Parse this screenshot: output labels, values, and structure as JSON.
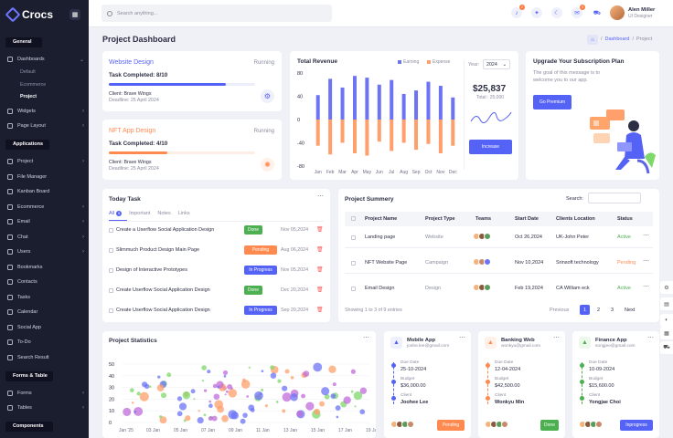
{
  "brand": {
    "name": "Crocs",
    "accent": "#5562f6"
  },
  "sidebar": {
    "general_label": "General",
    "applications_label": "Applications",
    "forms_label": "Forms & Table",
    "components_label": "Components",
    "dashboards": "Dashboards",
    "default": "Default",
    "ecommerce": "Ecommerce",
    "project": "Project",
    "widgets": "Widgets",
    "page_layout": "Page Layout",
    "apps": [
      "Project",
      "File Manager",
      "Kanban Board",
      "Ecommerce",
      "Email",
      "Chat",
      "Users",
      "Bookmarks",
      "Contacts",
      "Tasks",
      "Calendar",
      "Social App",
      "To-Do",
      "Search Result"
    ],
    "forms": "Forms",
    "tables": "Tables"
  },
  "topbar": {
    "search_placeholder": "Search anything...",
    "user_name": "Alen Miller",
    "user_role": "UI Designer",
    "badge_bell": "2",
    "badge_mail": "3"
  },
  "page": {
    "title": "Project Dashboard",
    "crumb_dashboard": "Dashboard",
    "crumb_sep": "/",
    "crumb_project": "Project"
  },
  "projects": [
    {
      "name": "Website Design",
      "status": "Running",
      "completed": "Task Completed: 8/10",
      "progress": 0.8,
      "client": "Client: Brave Wings",
      "deadline": "Deadline: 25 April 2024",
      "color": "#5562f6"
    },
    {
      "name": "NFT App Design",
      "status": "Running",
      "completed": "Task Completed: 4/10",
      "progress": 0.4,
      "client": "Client: Brave Wings",
      "deadline": "Deadline: 25 April 2024",
      "color": "#ff8a50"
    }
  ],
  "revenue": {
    "title": "Total Revenue",
    "legend_earning": "Earning",
    "legend_expense": "Expense",
    "year_label": "Year:",
    "year": "2024",
    "total": "$25,837",
    "last": "Total : 25,000",
    "button": "Increase"
  },
  "chart_data": [
    {
      "type": "bar",
      "title": "Total Revenue",
      "categories": [
        "Jan",
        "Feb",
        "Mar",
        "Apr",
        "May",
        "Jun",
        "Jul",
        "Aug",
        "Sep",
        "Oct",
        "Nov",
        "Dec"
      ],
      "series": [
        {
          "name": "Earning",
          "values": [
            42,
            70,
            55,
            75,
            72,
            60,
            68,
            44,
            50,
            65,
            58,
            38
          ]
        },
        {
          "name": "Expense",
          "values": [
            -45,
            -60,
            -40,
            -58,
            -62,
            -38,
            -54,
            -40,
            -52,
            -42,
            -58,
            -45
          ]
        }
      ],
      "yticks": [
        "80",
        "40",
        "0",
        "-40",
        "-80"
      ],
      "ylim": [
        -80,
        80
      ],
      "colors": {
        "Earning": "#6c74f5",
        "Expense": "#ff9f6b"
      }
    },
    {
      "type": "scatter",
      "title": "Project Statistics",
      "yticks": [
        "50",
        "40",
        "30",
        "20",
        "10",
        "0"
      ],
      "ylim": [
        0,
        50
      ],
      "xticks": [
        "Jan '25",
        "03 Jan",
        "05 Jan",
        "07 Jan",
        "09 Jan",
        "11 Jan",
        "13 Jan",
        "15 Jan",
        "17 Jan",
        "19 Jan"
      ],
      "colors": [
        "#6c74f5",
        "#7ed86a",
        "#ff9f6b",
        "#c06bd9"
      ]
    }
  ],
  "upgrade": {
    "title": "Upgrade Your Subscription Plan",
    "text": "The goal of this message is to welcome you to our app.",
    "button": "Go Premium"
  },
  "tasks": {
    "title": "Today Task",
    "tabs": {
      "all": "All",
      "all_count": "5",
      "important": "Important",
      "notes": "Notes",
      "links": "Links"
    },
    "rows": [
      {
        "name": "Create a Userflow Social Application Design",
        "status": "Done",
        "color": "#4caf50",
        "date": "Nov 05,2024"
      },
      {
        "name": "Slimmuch Product Design Main Page",
        "status": "Pending",
        "color": "#ff8a50",
        "date": "Aug 06,2024"
      },
      {
        "name": "Design of Interactive Prototypes",
        "status": "In Progress",
        "color": "#5562f6",
        "date": "Nov 05,2024"
      },
      {
        "name": "Create Userflow Social Application Design",
        "status": "Done",
        "color": "#4caf50",
        "date": "Dec 20,2024"
      },
      {
        "name": "Create Userflow Social Application Design",
        "status": "In Progress",
        "color": "#5562f6",
        "date": "Sep 20,2024"
      }
    ]
  },
  "summary": {
    "title": "Project Summery",
    "search_label": "Search:",
    "headers": [
      "Project Name",
      "Project Type",
      "Teams",
      "Start Date",
      "Clients Location",
      "Status"
    ],
    "rows": [
      {
        "name": "Landing page",
        "type": "Website",
        "start": "Oct 26,2024",
        "loc": "UK-John Peter",
        "status": "Active",
        "color": "#4caf50"
      },
      {
        "name": "NFT Website Page",
        "type": "Campaign",
        "start": "Nov 10,2024",
        "loc": "Srinsoft technology",
        "status": "Pending",
        "color": "#ff8a50"
      },
      {
        "name": "Email Design",
        "type": "Design",
        "start": "Feb 19,2024",
        "loc": "CA William eck",
        "status": "Active",
        "color": "#4caf50"
      }
    ],
    "footer": "Showing 1 to 3 of 9 entries",
    "prev": "Previous",
    "pages": [
      "1",
      "2",
      "3"
    ],
    "next": "Next"
  },
  "stats": {
    "title": "Project Statistics"
  },
  "apps": [
    {
      "name": "Mobile App",
      "email": "joohe.lee@gmail.com",
      "due_label": "Due Date",
      "due": "25-10-2024",
      "budget_label": "Budget",
      "budget": "$36,000.00",
      "client_label": "Client",
      "client": "Joohee Lee",
      "status": "Pending",
      "color": "#ff8a50",
      "icon_bg": "#eef0fb",
      "icon_color": "#5562f6"
    },
    {
      "name": "Banking Web",
      "email": "wonkyu@gmail.com",
      "due_label": "Due Date",
      "due": "12-04-2024",
      "budget_label": "Budget",
      "budget": "$42,500.00",
      "client_label": "Client",
      "client": "Wonkyu Min",
      "status": "Done",
      "color": "#4caf50",
      "icon_bg": "#fff1ea",
      "icon_color": "#ff8a50"
    },
    {
      "name": "Finance App",
      "email": "songjee@gmail.com",
      "due_label": "Due Date",
      "due": "10-09-2024",
      "budget_label": "Budget",
      "budget": "$15,600.00",
      "client_label": "Client",
      "client": "Yongjae Choi",
      "status": "Inprogress",
      "color": "#5562f6",
      "icon_bg": "#ecf8ec",
      "icon_color": "#4caf50"
    }
  ]
}
